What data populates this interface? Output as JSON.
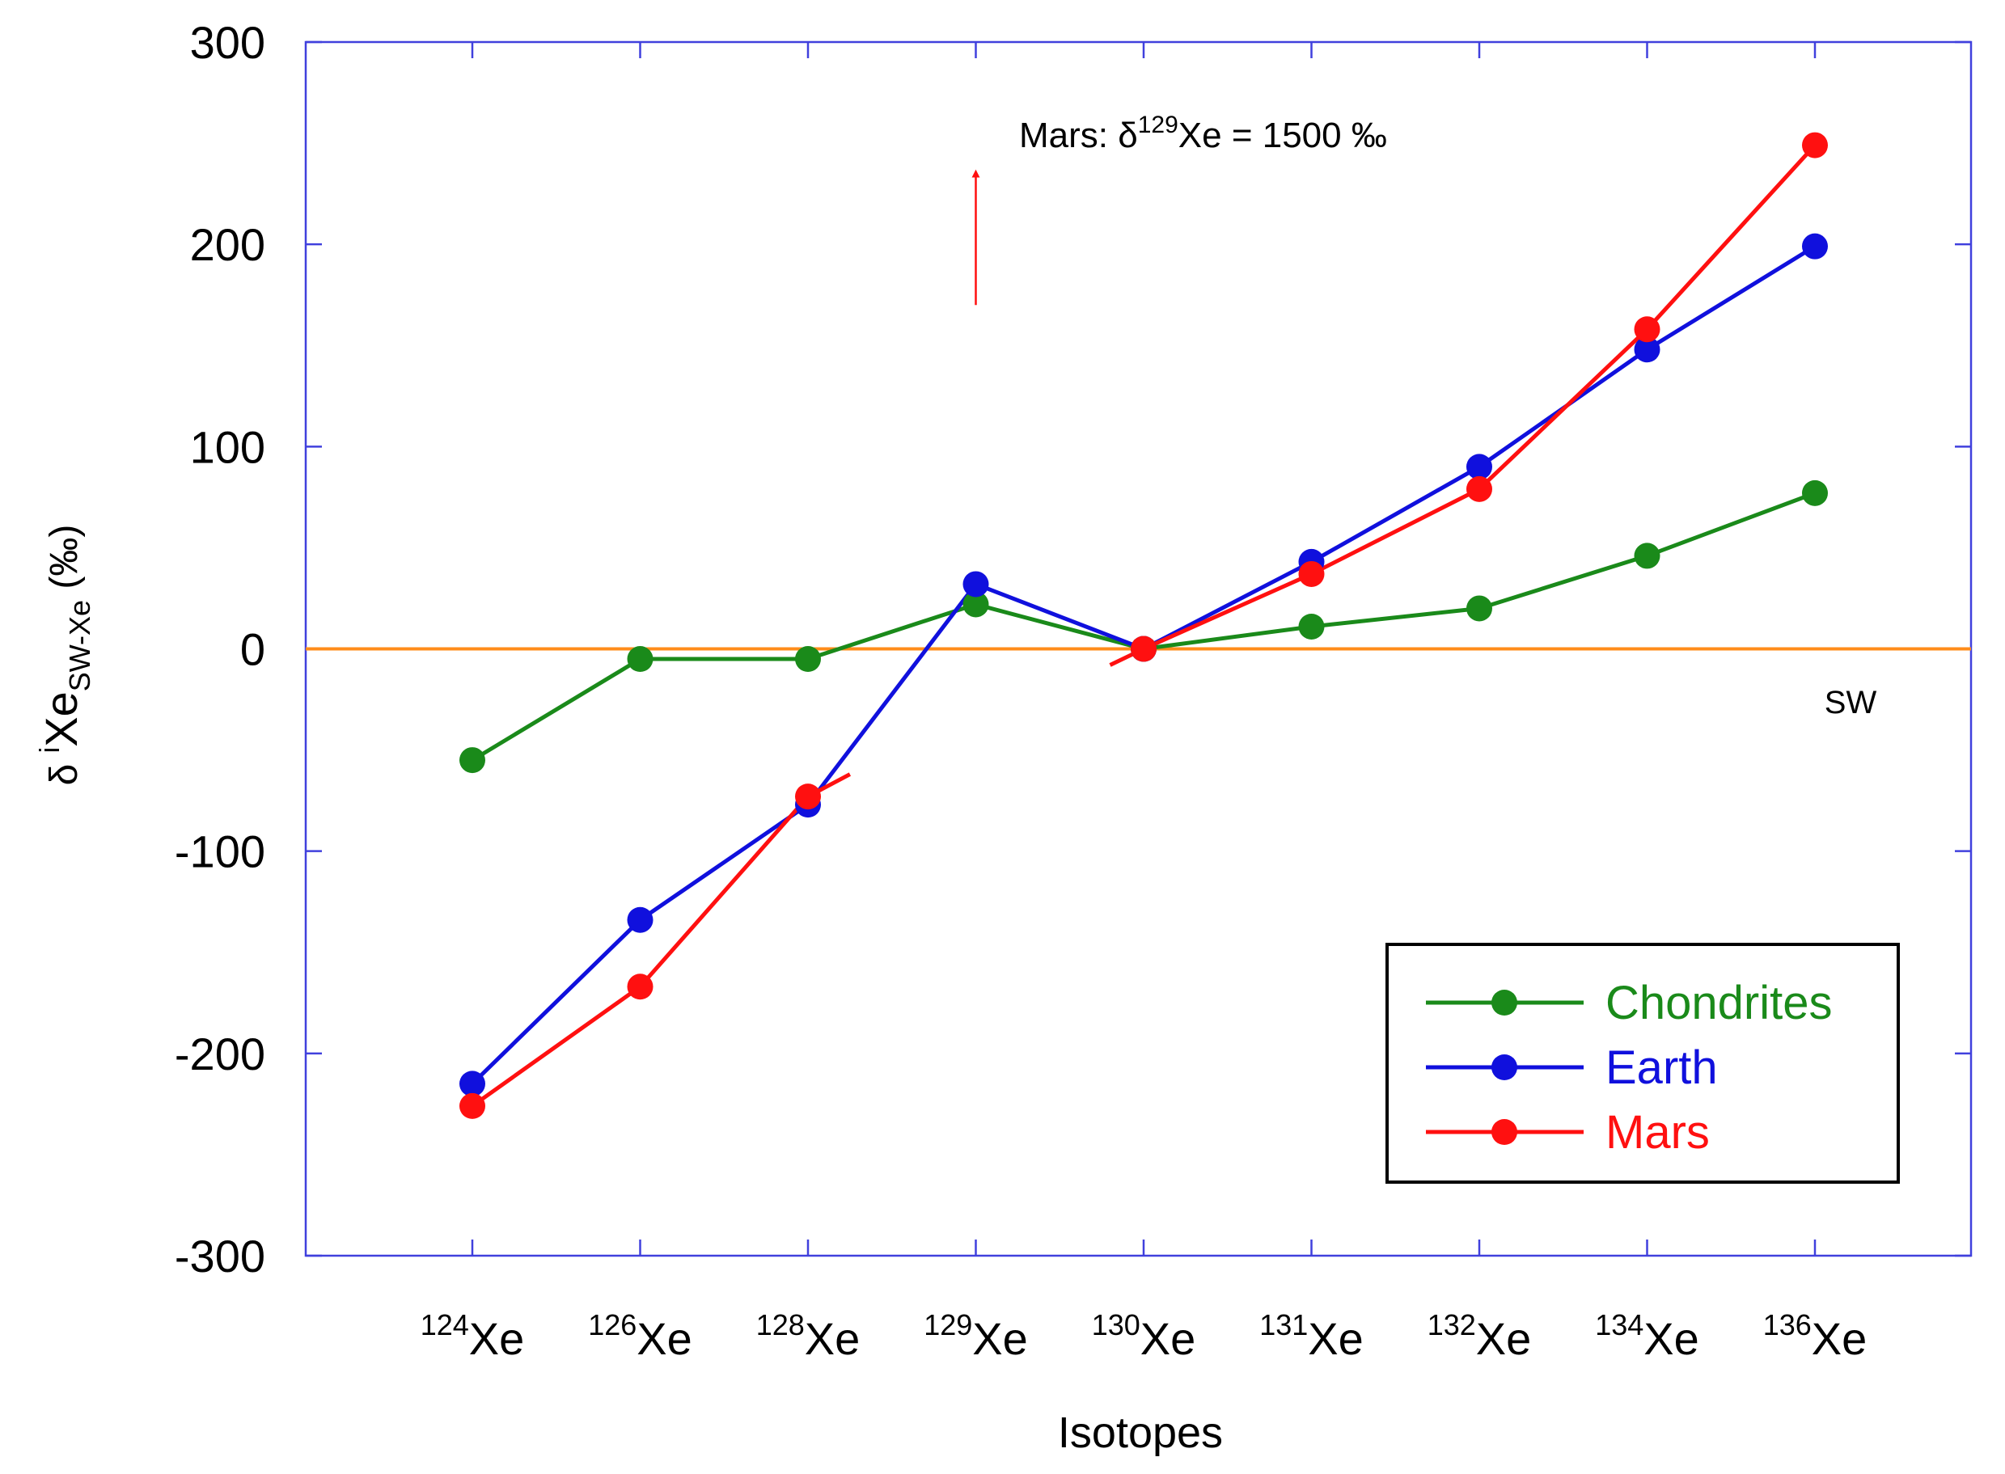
{
  "chart_data": {
    "type": "line",
    "title": "",
    "xlabel": "Isotopes",
    "ylabel": {
      "prefix": "δ ",
      "sup": "i",
      "main": "Xe",
      "sub": "SW-Xe",
      "unit": "(‰)"
    },
    "ylim": [
      -300,
      300
    ],
    "yticks": [
      -300,
      -200,
      -100,
      0,
      100,
      200,
      300
    ],
    "ytick_labels": [
      "-300",
      "-200",
      "-100",
      "0",
      "100",
      "200",
      "300"
    ],
    "categories": [
      {
        "mass": "124",
        "element": "Xe"
      },
      {
        "mass": "126",
        "element": "Xe"
      },
      {
        "mass": "128",
        "element": "Xe"
      },
      {
        "mass": "129",
        "element": "Xe"
      },
      {
        "mass": "130",
        "element": "Xe"
      },
      {
        "mass": "131",
        "element": "Xe"
      },
      {
        "mass": "132",
        "element": "Xe"
      },
      {
        "mass": "134",
        "element": "Xe"
      },
      {
        "mass": "136",
        "element": "Xe"
      }
    ],
    "series": [
      {
        "name": "Chondrites",
        "color": "#1a8a1a",
        "values": [
          -55,
          -5,
          -5,
          22,
          0,
          11,
          20,
          46,
          77
        ]
      },
      {
        "name": "Earth",
        "color": "#1010dd",
        "values": [
          -215,
          -134,
          -77,
          32,
          0,
          43,
          90,
          148,
          199
        ]
      },
      {
        "name": "Mars",
        "color": "#ff1010",
        "values": [
          -226,
          -167,
          -73,
          null,
          0,
          37,
          79,
          158,
          249
        ]
      }
    ],
    "mars_fragments": [
      {
        "from_index": 2,
        "from_value": -73,
        "to_index": 2.25,
        "to_value": -62
      },
      {
        "from_index": 3.8,
        "from_value": -8,
        "to_index": 4,
        "to_value": 0
      }
    ],
    "reference_line": {
      "name": "SW",
      "label": "SW",
      "value": 0,
      "color": "#ff8c1a"
    },
    "annotation": {
      "prefix": "Mars: δ",
      "sup": "129",
      "suffix": "Xe = 1500 ‰",
      "arrow_index": 3,
      "arrow_from": 170,
      "arrow_to": 235,
      "color": "#ff1010"
    },
    "axis_color": "#4040dd",
    "legend": {
      "position": "bottom-right",
      "entries": [
        "Chondrites",
        "Earth",
        "Mars"
      ]
    },
    "grid": false
  }
}
